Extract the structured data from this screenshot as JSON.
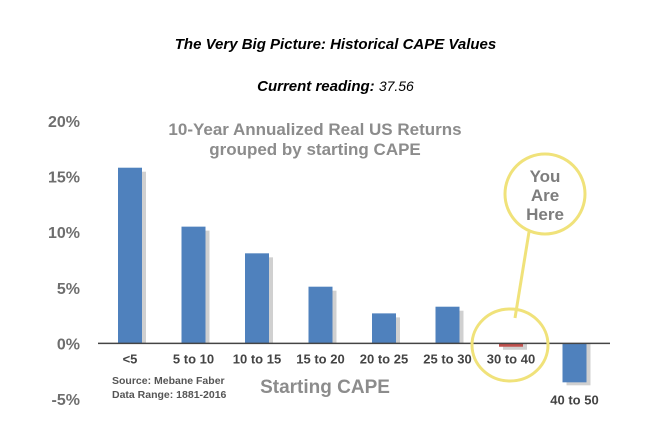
{
  "title": "The Very Big Picture: Historical CAPE Values",
  "current_reading_label": "Current reading:",
  "current_reading_value": "37.56",
  "chart_data": {
    "type": "bar",
    "title": "10-Year Annualized Real US Returns",
    "title_line2": "grouped by starting CAPE",
    "xlabel": "Starting CAPE",
    "ylabel": "",
    "categories": [
      "<5",
      "5 to 10",
      "10 to 15",
      "15 to 20",
      "20 to 25",
      "25 to 30",
      "30 to 40",
      "40 to 50"
    ],
    "values": [
      15.8,
      10.5,
      8.1,
      5.1,
      2.7,
      3.3,
      -0.3,
      -3.5
    ],
    "ylim": [
      -5,
      20
    ],
    "yticks": [
      -5,
      0,
      5,
      10,
      15,
      20
    ],
    "ytick_labels": [
      "-5%",
      "0%",
      "5%",
      "10%",
      "15%",
      "20%"
    ],
    "grid": false,
    "colors": {
      "bar": "#4f81bd",
      "highlight_bar": "#c0504d",
      "shadow": "#d0d0d0",
      "callout": "#f0e27a"
    },
    "highlight_category": "30 to 40",
    "callout_lines": [
      "You",
      "Are",
      "Here"
    ],
    "source_lines": [
      "Source: Mebane Faber",
      "Data Range: 1881-2016"
    ]
  }
}
